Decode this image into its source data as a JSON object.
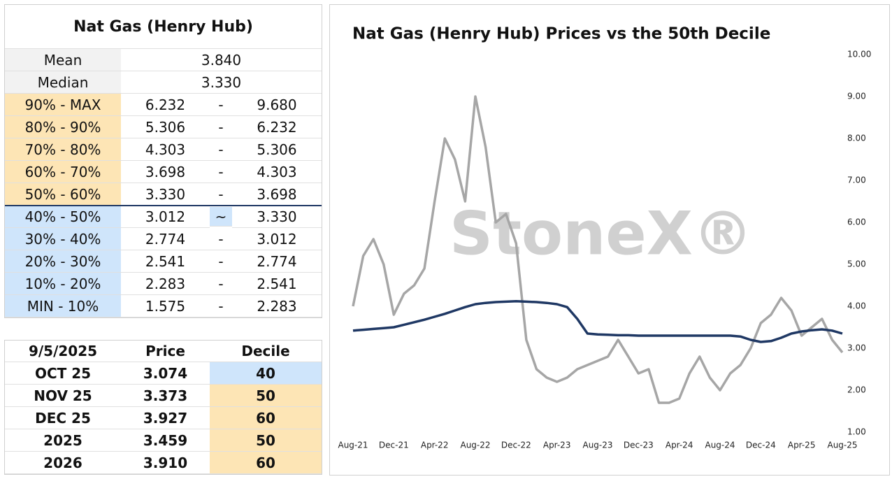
{
  "stats": {
    "title": "Nat Gas (Henry Hub)",
    "summary": [
      [
        "Mean",
        "3.840"
      ],
      [
        "Median",
        "3.330"
      ]
    ],
    "deciles": [
      [
        "90% - MAX",
        "6.232",
        "-",
        "9.680"
      ],
      [
        "80% - 90%",
        "5.306",
        "-",
        "6.232"
      ],
      [
        "70% - 80%",
        "4.303",
        "-",
        "5.306"
      ],
      [
        "60% - 70%",
        "3.698",
        "-",
        "4.303"
      ],
      [
        "50% - 60%",
        "3.330",
        "-",
        "3.698"
      ],
      [
        "40% - 50%",
        "3.012",
        "~",
        "3.330"
      ],
      [
        "30% - 40%",
        "2.774",
        "-",
        "3.012"
      ],
      [
        "20% - 30%",
        "2.541",
        "-",
        "2.774"
      ],
      [
        "10% - 20%",
        "2.283",
        "-",
        "2.541"
      ],
      [
        "MIN - 10%",
        "1.575",
        "-",
        "2.283"
      ]
    ],
    "decile_colors": [
      "#fde5b5",
      "#fde5b5",
      "#fde5b5",
      "#fde5b5",
      "#fde5b5",
      "#cfe5fb",
      "#cfe5fb",
      "#cfe5fb",
      "#cfe5fb",
      "#cfe5fb"
    ]
  },
  "prices": {
    "header": [
      "9/5/2025",
      "Price",
      "Decile"
    ],
    "rows": [
      [
        "OCT 25",
        "3.074",
        "40"
      ],
      [
        "NOV 25",
        "3.373",
        "50"
      ],
      [
        "DEC 25",
        "3.927",
        "60"
      ],
      [
        "2025",
        "3.459",
        "50"
      ],
      [
        "2026",
        "3.910",
        "60"
      ]
    ],
    "decile_colors": [
      "#cfe5fb",
      "#fde5b5",
      "#fde5b5",
      "#fde5b5",
      "#fde5b5"
    ]
  },
  "chart_data": {
    "type": "line",
    "title": "Nat Gas (Henry Hub) Prices vs the 50th Decile",
    "watermark": "StoneX®",
    "categories": [
      "Aug-21",
      null,
      null,
      null,
      "Dec-21",
      null,
      null,
      null,
      "Apr-22",
      null,
      null,
      null,
      "Aug-22",
      null,
      null,
      null,
      "Dec-22",
      null,
      null,
      null,
      "Apr-23",
      null,
      null,
      null,
      "Aug-23",
      null,
      null,
      null,
      "Dec-23",
      null,
      null,
      null,
      "Apr-24",
      null,
      null,
      null,
      "Aug-24",
      null,
      null,
      null,
      "Dec-24",
      null,
      null,
      null,
      "Apr-25",
      null,
      null,
      null,
      "Aug-25"
    ],
    "series": [
      {
        "color": "#a6a6a6",
        "values": [
          4.0,
          5.2,
          5.6,
          5.0,
          3.8,
          4.3,
          4.5,
          4.9,
          6.5,
          8.0,
          7.5,
          6.5,
          9.0,
          7.8,
          6.0,
          6.2,
          5.5,
          3.2,
          2.5,
          2.3,
          2.2,
          2.3,
          2.5,
          2.6,
          2.7,
          2.8,
          3.2,
          2.8,
          2.4,
          2.5,
          1.7,
          1.7,
          1.8,
          2.4,
          2.8,
          2.3,
          2.0,
          2.4,
          2.6,
          3.0,
          3.6,
          3.8,
          4.2,
          3.9,
          3.3,
          3.5,
          3.7,
          3.2,
          2.9
        ]
      },
      {
        "color": "#1f3864",
        "values": [
          3.42,
          3.44,
          3.46,
          3.48,
          3.5,
          3.56,
          3.62,
          3.68,
          3.75,
          3.82,
          3.9,
          3.98,
          4.05,
          4.08,
          4.1,
          4.11,
          4.12,
          4.11,
          4.1,
          4.08,
          4.05,
          3.98,
          3.7,
          3.35,
          3.33,
          3.32,
          3.31,
          3.31,
          3.3,
          3.3,
          3.3,
          3.3,
          3.3,
          3.3,
          3.3,
          3.3,
          3.3,
          3.3,
          3.28,
          3.2,
          3.15,
          3.17,
          3.25,
          3.35,
          3.4,
          3.43,
          3.45,
          3.42,
          3.35
        ]
      }
    ],
    "ylim": [
      1,
      10
    ],
    "yticks": [
      {
        "value": 1,
        "label": "1.00"
      },
      {
        "value": 2,
        "label": "2.00"
      },
      {
        "value": 3,
        "label": "3.00"
      },
      {
        "value": 4,
        "label": "4.00"
      },
      {
        "value": 5,
        "label": "5.00"
      },
      {
        "value": 6,
        "label": "6.00"
      },
      {
        "value": 7,
        "label": "7.00"
      },
      {
        "value": 8,
        "label": "8.00"
      },
      {
        "value": 9,
        "label": "9.00"
      },
      {
        "value": 10,
        "label": "10.00"
      }
    ],
    "grid": false
  }
}
